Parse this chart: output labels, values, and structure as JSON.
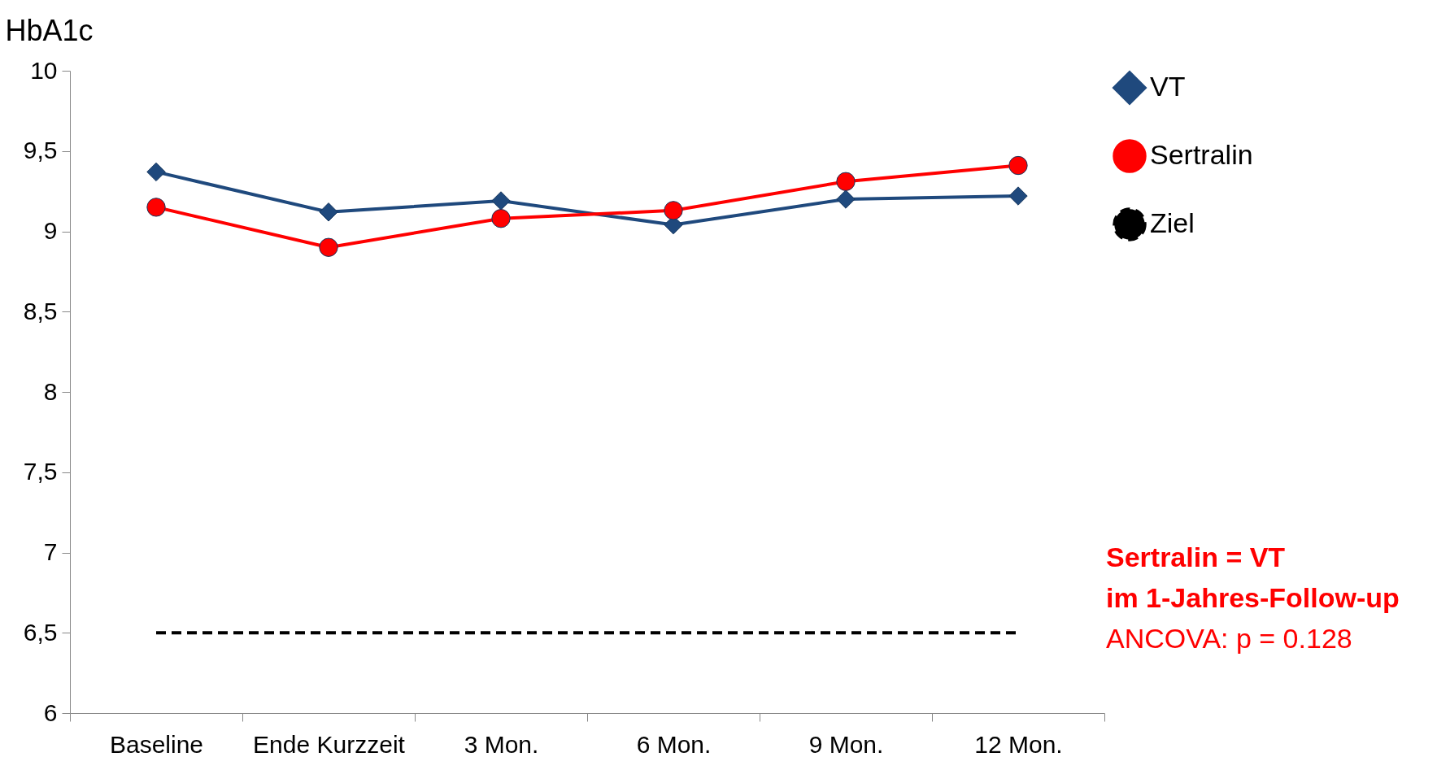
{
  "chart_data": {
    "type": "line",
    "ylabel": "HbA1c",
    "categories": [
      "Baseline",
      "Ende Kurzzeit",
      "3 Mon.",
      "6 Mon.",
      "9 Mon.",
      "12 Mon."
    ],
    "series": [
      {
        "name": "VT",
        "color": "#1f497d",
        "marker": "diamond",
        "values": [
          9.37,
          9.12,
          9.19,
          9.04,
          9.2,
          9.22
        ]
      },
      {
        "name": "Sertralin",
        "color": "#ff0000",
        "marker": "circle",
        "values": [
          9.15,
          8.9,
          9.08,
          9.13,
          9.31,
          9.41
        ]
      },
      {
        "name": "Ziel",
        "color": "#000000",
        "marker": "none",
        "line_style": "dashed",
        "values": [
          6.5,
          6.5,
          6.5,
          6.5,
          6.5,
          6.5
        ]
      }
    ],
    "ylim": [
      6,
      10
    ],
    "yticks": [
      6,
      {
        "value": 6.5,
        "label": "6,5"
      },
      7,
      {
        "value": 7.5,
        "label": "7,5"
      },
      8,
      {
        "value": 8.5,
        "label": "8,5"
      },
      9,
      {
        "value": 9.5,
        "label": "9,5"
      },
      10
    ],
    "legend": "top right",
    "grid": false,
    "annotations": [
      "Sertralin = VT",
      "im 1-Jahres-Follow-up",
      "ANCOVA: p = 0.128"
    ]
  }
}
